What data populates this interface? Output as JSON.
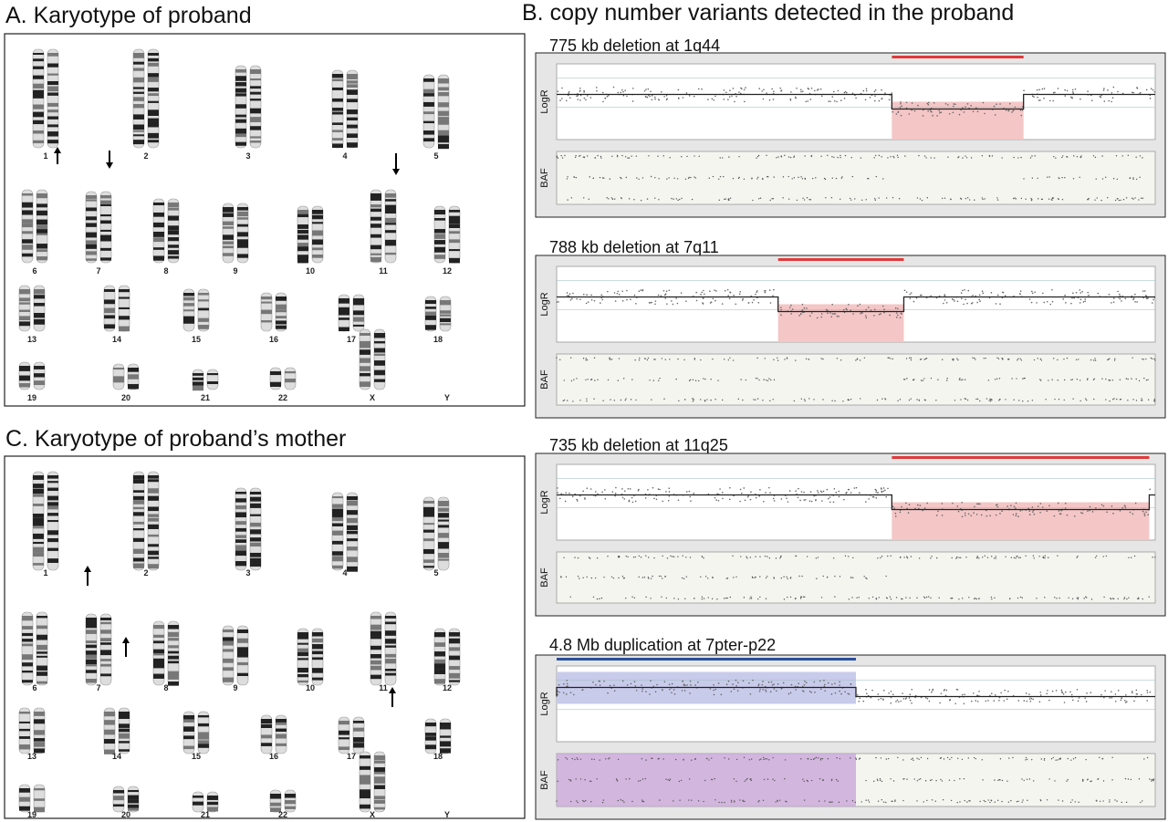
{
  "panel_a": {
    "title": "A. Karyotype of proband",
    "chromosomes": [
      "1",
      "2",
      "3",
      "4",
      "5",
      "6",
      "7",
      "8",
      "9",
      "10",
      "11",
      "12",
      "13",
      "14",
      "15",
      "16",
      "17",
      "18",
      "19",
      "20",
      "21",
      "22",
      "X",
      "Y"
    ]
  },
  "panel_b": {
    "title": "B. copy number variants detected in the proband",
    "plots": [
      {
        "title": "775 kb deletion at 1q44",
        "logr_label": "LogR",
        "baf_label": "BAF"
      },
      {
        "title": "788 kb deletion at 7q11",
        "logr_label": "LogR",
        "baf_label": "BAF"
      },
      {
        "title": "735 kb deletion at 11q25",
        "logr_label": "LogR",
        "baf_label": "BAF"
      },
      {
        "title": "4.8 Mb duplication at 7pter-p22",
        "logr_label": "LogR",
        "baf_label": "BAF"
      }
    ]
  },
  "panel_c": {
    "title": "C. Karyotype of proband’s mother",
    "chromosomes": [
      "1",
      "2",
      "3",
      "4",
      "5",
      "6",
      "7",
      "8",
      "9",
      "10",
      "11",
      "12",
      "13",
      "14",
      "15",
      "16",
      "17",
      "18",
      "19",
      "20",
      "21",
      "22",
      "X",
      "Y"
    ]
  }
}
